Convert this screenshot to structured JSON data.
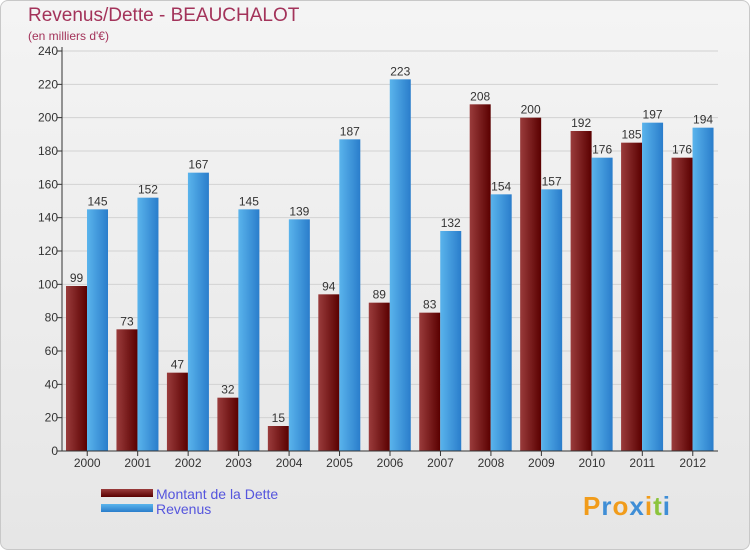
{
  "title": "Revenus/Dette - BEAUCHALOT",
  "subtitle": "(en milliers d'€)",
  "logo": {
    "letters": [
      "P",
      "r",
      "o",
      "x",
      "i",
      "t",
      "i"
    ],
    "colors": [
      "#f19c1b",
      "#3f8ed6",
      "#f19c1b",
      "#3f8ed6",
      "#f19c1b",
      "#8cc43c",
      "#3f8ed6"
    ]
  },
  "colors": {
    "dette_dark": "#5a0000",
    "dette_light": "#9a3c3c",
    "revenus_dark": "#2a7dcb",
    "revenus_light": "#5ab4ec",
    "grid": "#d2d2d2",
    "axis": "#333333"
  },
  "chart_data": {
    "type": "bar",
    "title": "Revenus/Dette - BEAUCHALOT",
    "subtitle": "(en milliers d'€)",
    "categories": [
      "2000",
      "2001",
      "2002",
      "2003",
      "2004",
      "2005",
      "2006",
      "2007",
      "2008",
      "2009",
      "2010",
      "2011",
      "2012"
    ],
    "series": [
      {
        "name": "Montant de la Dette",
        "values": [
          99,
          73,
          47,
          32,
          15,
          94,
          89,
          83,
          208,
          200,
          192,
          185,
          176
        ]
      },
      {
        "name": "Revenus",
        "values": [
          145,
          152,
          167,
          145,
          139,
          187,
          223,
          132,
          154,
          157,
          176,
          197,
          194
        ]
      }
    ],
    "yticks": [
      0,
      20,
      40,
      60,
      80,
      100,
      120,
      140,
      160,
      180,
      200,
      220,
      240
    ],
    "ylim": [
      0,
      240
    ],
    "grid": true,
    "legend": "bottom-left"
  }
}
